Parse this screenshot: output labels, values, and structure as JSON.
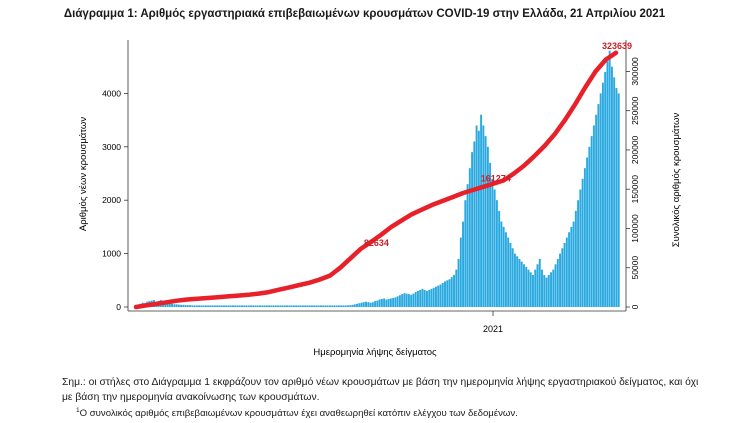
{
  "chart_data": {
    "type": "bar",
    "title": "Διάγραμμα 1: Αριθμός εργαστηριακά επιβεβαιωμένων κρουσμάτων COVID-19 στην Ελλάδα, 21 Απριλίου 2021",
    "xlabel": "Ημερομηνία λήψης δείγματος",
    "ylabel": "Αριθμός νέων κρουσμάτων",
    "y2label": "Συνολικός αριθμός κρουσμάτων",
    "x_tick_labels": [
      "2021"
    ],
    "ylim": [
      0,
      5000
    ],
    "y_ticks": [
      0,
      1000,
      2000,
      3000,
      4000
    ],
    "y2lim": [
      0,
      340000
    ],
    "y2_ticks": [
      0,
      50000,
      100000,
      150000,
      200000,
      250000,
      300000
    ],
    "grid": false,
    "colors": {
      "bars": "#29a9df",
      "cumulative": "#e8202a",
      "annotation": "#cc1f27"
    },
    "series": [
      {
        "name": "Αριθμός νέων κρουσμάτων",
        "type": "bar",
        "values": [
          0,
          30,
          60,
          80,
          70,
          100,
          110,
          120,
          130,
          100,
          110,
          130,
          120,
          100,
          80,
          70,
          60,
          50,
          50,
          45,
          40,
          40,
          35,
          35,
          35,
          30,
          30,
          30,
          30,
          30,
          30,
          30,
          30,
          30,
          30,
          30,
          30,
          30,
          30,
          30,
          30,
          30,
          30,
          30,
          30,
          30,
          30,
          30,
          30,
          30,
          30,
          30,
          30,
          30,
          30,
          30,
          30,
          30,
          30,
          30,
          30,
          30,
          30,
          30,
          30,
          30,
          30,
          30,
          30,
          30,
          30,
          30,
          30,
          30,
          30,
          30,
          30,
          30,
          30,
          30,
          30,
          30,
          30,
          30,
          30,
          30,
          30,
          30,
          30,
          30,
          30,
          30,
          30,
          30,
          30,
          35,
          40,
          50,
          60,
          70,
          80,
          90,
          100,
          90,
          80,
          90,
          110,
          120,
          140,
          150,
          160,
          140,
          150,
          160,
          170,
          180,
          200,
          220,
          240,
          260,
          250,
          240,
          230,
          250,
          280,
          300,
          320,
          340,
          320,
          300,
          320,
          340,
          360,
          380,
          400,
          420,
          450,
          480,
          500,
          520,
          560,
          600,
          700,
          900,
          1300,
          1600,
          2000,
          2300,
          2600,
          2900,
          3100,
          3400,
          3300,
          3600,
          3400,
          3200,
          3000,
          2700,
          2400,
          2200,
          2000,
          1800,
          1600,
          1500,
          1400,
          1300,
          1200,
          1100,
          1000,
          950,
          900,
          850,
          800,
          750,
          700,
          650,
          600,
          700,
          800,
          900,
          700,
          600,
          550,
          600,
          650,
          700,
          800,
          900,
          1000,
          1100,
          1200,
          1300,
          1400,
          1500,
          1600,
          1800,
          2000,
          2200,
          2400,
          2600,
          2800,
          3000,
          3200,
          3400,
          3600,
          3800,
          4000,
          4200,
          4400,
          4600,
          4800,
          4500,
          4300,
          4100,
          4000
        ]
      },
      {
        "name": "Συνολικός αριθμός κρουσμάτων",
        "type": "line",
        "axis": "right",
        "values": [
          0,
          2000,
          4000,
          6000,
          8000,
          9500,
          10500,
          11500,
          12500,
          13500,
          14500,
          15500,
          17000,
          19000,
          22000,
          25000,
          28000,
          31000,
          35000,
          40000,
          50000,
          62000,
          74000,
          82634,
          92000,
          102000,
          110000,
          118000,
          124000,
          130000,
          135000,
          140000,
          145000,
          149000,
          153000,
          157000,
          161274,
          170000,
          180000,
          192000,
          205000,
          220000,
          238000,
          258000,
          280000,
          300000,
          315000,
          323639
        ]
      }
    ],
    "annotations": [
      "82634",
      "161274",
      "323639"
    ]
  },
  "note": {
    "text": "Σημ.: οι στήλες στο Διάγραμμα 1 εκφράζουν τον αριθμό νέων κρουσμάτων με βάση την ημερομηνία λήψης εργαστηριακού δείγματος, και όχι με βάση την ημερομηνία ανακοίνωσης των κρουσμάτων."
  },
  "footnote": {
    "mark": "1",
    "text": "Ο συνολικός αριθμός επιβεβαιωμένων κρουσμάτων έχει αναθεωρηθεί κατόπιν ελέγχου των δεδομένων."
  }
}
